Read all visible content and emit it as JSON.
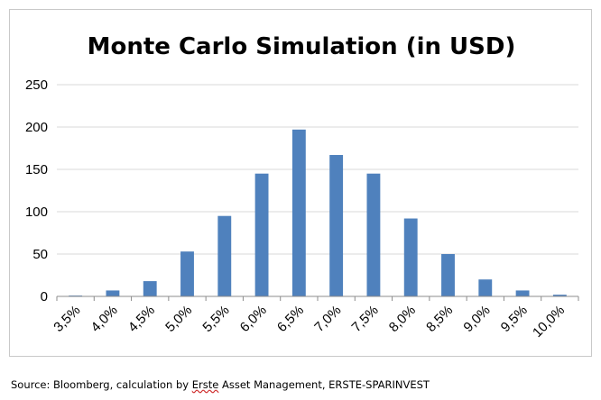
{
  "chart_data": {
    "type": "bar",
    "title": "Monte Carlo Simulation (in USD)",
    "xlabel": "",
    "ylabel": "",
    "categories": [
      "3,5%",
      "4,0%",
      "4,5%",
      "5,0%",
      "5,5%",
      "6,0%",
      "6,5%",
      "7,0%",
      "7,5%",
      "8,0%",
      "8,5%",
      "9,0%",
      "9,5%",
      "10,0%"
    ],
    "values": [
      1,
      7,
      18,
      53,
      95,
      145,
      197,
      167,
      145,
      92,
      50,
      20,
      7,
      2
    ],
    "ylim": [
      0,
      250
    ],
    "yticks": [
      0,
      50,
      100,
      150,
      200,
      250
    ],
    "grid": true,
    "legend": "none",
    "bar_color": "#4f81bd"
  },
  "source": {
    "prefix": "Source: Bloomberg, calculation by ",
    "underlined": "Erste",
    "suffix": " Asset Management, ERSTE-SPARINVEST"
  },
  "colors": {
    "gridline": "#d9d9d9",
    "axis": "#8c8c8c",
    "frame": "#c9c9c9"
  }
}
